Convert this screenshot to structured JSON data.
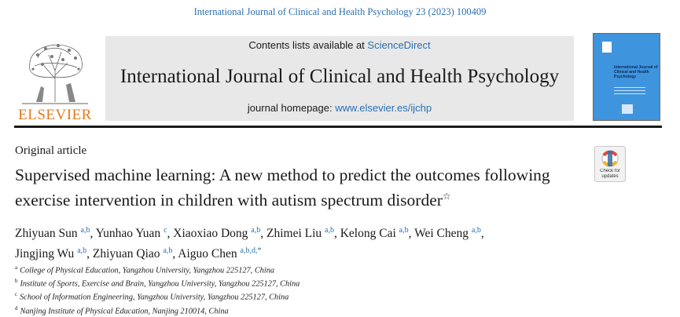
{
  "journal_ref": "International Journal of Clinical and Health Psychology 23 (2023) 100409",
  "header": {
    "publisher": "ELSEVIER",
    "contents_prefix": "Contents lists available at",
    "contents_link": "ScienceDirect",
    "journal_title": "International Journal of Clinical and Health Psychology",
    "homepage_prefix": "journal homepage:",
    "homepage_url": "www.elsevier.es/ijchp",
    "cover_title": "International Journal of Clinical and Health Psychology"
  },
  "article": {
    "type": "Original article",
    "title": "Supervised machine learning: A new method to predict the outcomes following exercise intervention in children with autism spectrum disorder",
    "title_mark": "☆",
    "crossmark_label": "Check for updates"
  },
  "authors": [
    {
      "name": "Zhiyuan Sun",
      "sup": "a,b",
      "sep": ","
    },
    {
      "name": "Yunhao Yuan",
      "sup": "c",
      "sep": ","
    },
    {
      "name": "Xiaoxiao Dong",
      "sup": "a,b",
      "sep": ","
    },
    {
      "name": "Zhimei Liu",
      "sup": "a,b",
      "sep": ","
    },
    {
      "name": "Kelong Cai",
      "sup": "a,b",
      "sep": ","
    },
    {
      "name": "Wei Cheng",
      "sup": "a,b",
      "sep": ","
    },
    {
      "name": "Jingjing Wu",
      "sup": "a,b",
      "sep": ","
    },
    {
      "name": "Zhiyuan Qiao",
      "sup": "a,b",
      "sep": ","
    },
    {
      "name": "Aiguo Chen",
      "sup": "a,b,d,*",
      "sep": ""
    }
  ],
  "affiliations": [
    {
      "mark": "a",
      "text": "College of Physical Education, Yangzhou University, Yangzhou 225127, China"
    },
    {
      "mark": "b",
      "text": "Institute of Sports, Exercise and Brain, Yangzhou University, Yangzhou 225127, China"
    },
    {
      "mark": "c",
      "text": "School of Information Engineering, Yangzhou University, Yangzhou 225127, China"
    },
    {
      "mark": "d",
      "text": "Nanjing Institute of Physical Education, Nanjing 210014, China"
    }
  ]
}
